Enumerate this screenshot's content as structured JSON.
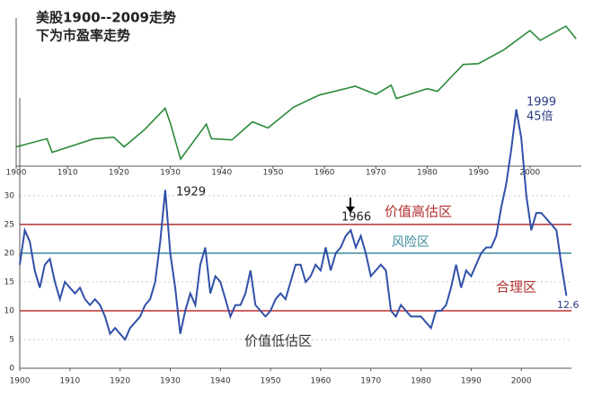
{
  "chart_data": [
    {
      "type": "line",
      "title": "美股1900--2009走势",
      "subtitle": "下为市盈率走势",
      "log_scale": true,
      "x": [
        1900,
        1906,
        1907,
        1915,
        1919,
        1921,
        1925,
        1929,
        1930,
        1932,
        1937,
        1938,
        1942,
        1946,
        1949,
        1954,
        1959,
        1966,
        1970,
        1973,
        1974,
        1980,
        1982,
        1987,
        1990,
        1995,
        2000,
        2002,
        2007,
        2009
      ],
      "values": [
        70,
        100,
        55,
        99,
        107,
        70,
        150,
        381,
        200,
        41,
        190,
        100,
        95,
        210,
        160,
        400,
        680,
        1000,
        700,
        1050,
        580,
        900,
        800,
        2600,
        2700,
        5000,
        11500,
        7500,
        14000,
        8000
      ],
      "color": "#2a8a3a",
      "xlim": [
        1900,
        2010
      ],
      "ylim": [
        30,
        20000
      ],
      "xticks": [
        1900,
        1910,
        1920,
        1930,
        1940,
        1950,
        1960,
        1970,
        1980,
        1990,
        2000
      ]
    },
    {
      "type": "line",
      "x": [
        1900,
        1901,
        1902,
        1903,
        1904,
        1905,
        1906,
        1907,
        1908,
        1909,
        1910,
        1911,
        1912,
        1913,
        1914,
        1915,
        1916,
        1917,
        1918,
        1919,
        1920,
        1921,
        1922,
        1923,
        1924,
        1925,
        1926,
        1927,
        1928,
        1929,
        1930,
        1931,
        1932,
        1933,
        1934,
        1935,
        1936,
        1937,
        1938,
        1939,
        1940,
        1941,
        1942,
        1943,
        1944,
        1945,
        1946,
        1947,
        1948,
        1949,
        1950,
        1951,
        1952,
        1953,
        1954,
        1955,
        1956,
        1957,
        1958,
        1959,
        1960,
        1961,
        1962,
        1963,
        1964,
        1965,
        1966,
        1967,
        1968,
        1969,
        1970,
        1971,
        1972,
        1973,
        1974,
        1975,
        1976,
        1977,
        1978,
        1979,
        1980,
        1981,
        1982,
        1983,
        1984,
        1985,
        1986,
        1987,
        1988,
        1989,
        1990,
        1991,
        1992,
        1993,
        1994,
        1995,
        1996,
        1997,
        1998,
        1999,
        2000,
        2001,
        2002,
        2003,
        2004,
        2005,
        2006,
        2007,
        2008,
        2009
      ],
      "values": [
        18,
        24,
        22,
        17,
        14,
        18,
        19,
        15,
        12,
        15,
        14,
        13,
        14,
        12,
        11,
        12,
        11,
        9,
        6,
        7,
        6,
        5,
        7,
        8,
        9,
        11,
        12,
        15,
        22,
        31,
        20,
        14,
        6,
        10,
        13,
        11,
        18,
        21,
        13,
        16,
        15,
        12,
        9,
        11,
        11,
        13,
        17,
        11,
        10,
        9,
        10,
        12,
        13,
        12,
        15,
        18,
        18,
        15,
        16,
        18,
        17,
        21,
        17,
        20,
        21,
        23,
        24,
        21,
        23,
        20,
        16,
        17,
        18,
        17,
        10,
        9,
        11,
        10,
        9,
        9,
        9,
        8,
        7,
        10,
        10,
        11,
        14,
        18,
        14,
        17,
        16,
        18,
        20,
        21,
        21,
        23,
        28,
        32,
        38,
        45,
        40,
        30,
        24,
        27,
        27,
        26,
        25,
        24,
        18,
        12.6
      ],
      "color": "#3050a8",
      "xlim": [
        1900,
        2010
      ],
      "ylim": [
        0,
        47
      ],
      "xticks": [
        1900,
        1910,
        1920,
        1930,
        1940,
        1950,
        1960,
        1970,
        1980,
        1990,
        2000
      ],
      "yticks": [
        0,
        5,
        10,
        15,
        20,
        25,
        30
      ],
      "grid": true,
      "reference_lines": [
        {
          "value": 25,
          "color": "#b03030"
        },
        {
          "value": 20,
          "color": "#3a8a9a"
        },
        {
          "value": 10,
          "color": "#c03030"
        }
      ],
      "annotations": [
        "1929",
        "1966",
        "1999",
        "45倍",
        "12.6",
        "价值高估区",
        "风险区",
        "合理区",
        "价值低估区"
      ]
    }
  ]
}
